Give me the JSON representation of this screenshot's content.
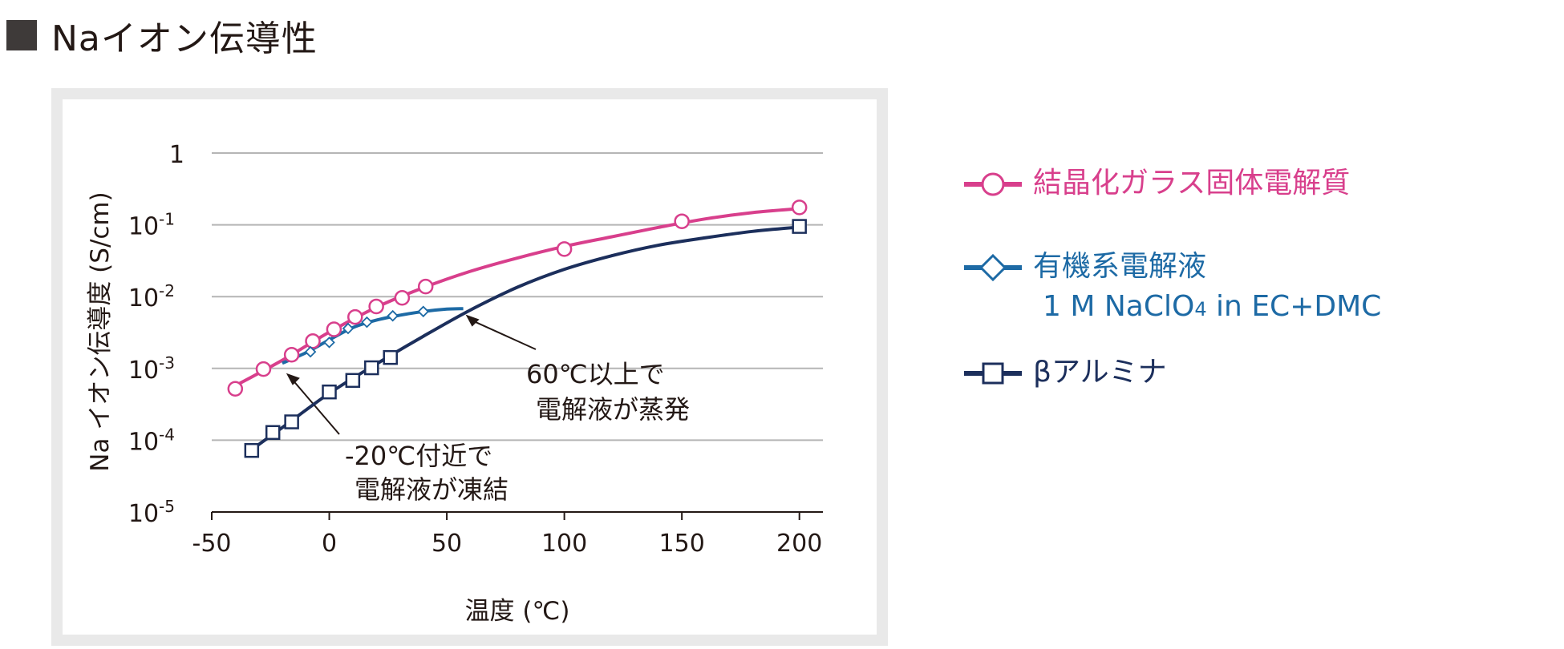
{
  "heading": {
    "text": "Naイオン伝導性"
  },
  "colors": {
    "crystallized": "#d83f8c",
    "organic": "#1d6aa5",
    "alumina": "#1c2f5c",
    "grid": "#b5b5b5",
    "axis": "#231815",
    "panel": "#e9e9e9"
  },
  "chart_data": {
    "type": "scatter",
    "xlabel": "温度 (℃)",
    "ylabel": "Na イオン伝導度 (S/cm)",
    "xlim": [
      -50,
      210
    ],
    "ylim_log10": [
      -5,
      0
    ],
    "y_scale": "log",
    "grid": "horizontal",
    "x_ticks": [
      -50,
      0,
      50,
      100,
      150,
      200
    ],
    "x_tick_labels": [
      "-50",
      "0",
      "50",
      "100",
      "150",
      "200"
    ],
    "y_ticks": [
      {
        "value": 1,
        "base": "1",
        "exp": ""
      },
      {
        "value": 0.1,
        "base": "10",
        "exp": "-1"
      },
      {
        "value": 0.01,
        "base": "10",
        "exp": "-2"
      },
      {
        "value": 0.001,
        "base": "10",
        "exp": "-3"
      },
      {
        "value": 0.0001,
        "base": "10",
        "exp": "-4"
      },
      {
        "value": 1e-05,
        "base": "10",
        "exp": "-5"
      }
    ],
    "series": [
      {
        "name": "結晶化ガラス固体電解質",
        "color_key": "crystallized",
        "marker": "circle",
        "points": [
          [
            -40,
            0.00052
          ],
          [
            -28,
            0.00098
          ],
          [
            -16,
            0.00155
          ],
          [
            -7,
            0.0024
          ],
          [
            2,
            0.0035
          ],
          [
            11,
            0.0052
          ],
          [
            20,
            0.0073
          ],
          [
            31,
            0.0096
          ],
          [
            41,
            0.0138
          ],
          [
            100,
            0.046
          ],
          [
            150,
            0.112
          ],
          [
            200,
            0.175
          ]
        ],
        "curve": [
          [
            -41,
            0.00055
          ],
          [
            -20,
            0.0013
          ],
          [
            0,
            0.0032
          ],
          [
            20,
            0.0071
          ],
          [
            40,
            0.0133
          ],
          [
            60,
            0.0225
          ],
          [
            80,
            0.0345
          ],
          [
            100,
            0.05
          ],
          [
            120,
            0.068
          ],
          [
            140,
            0.092
          ],
          [
            160,
            0.121
          ],
          [
            180,
            0.148
          ],
          [
            200,
            0.168
          ]
        ]
      },
      {
        "name": "有機系電解液",
        "name_line2": "1 M NaClO4 in EC+DMC",
        "color_key": "organic",
        "marker": "diamond",
        "points": [
          [
            -8,
            0.0017
          ],
          [
            0,
            0.0023
          ],
          [
            8,
            0.0036
          ],
          [
            16,
            0.0044
          ],
          [
            27,
            0.0054
          ],
          [
            40,
            0.0062
          ]
        ],
        "curve": [
          [
            -20,
            0.00118
          ],
          [
            -10,
            0.00165
          ],
          [
            0,
            0.0025
          ],
          [
            10,
            0.0037
          ],
          [
            20,
            0.0047
          ],
          [
            30,
            0.0055
          ],
          [
            40,
            0.0062
          ],
          [
            50,
            0.0067
          ],
          [
            57,
            0.0068
          ]
        ]
      },
      {
        "name": "βアルミナ",
        "color_key": "alumina",
        "marker": "square",
        "points": [
          [
            -33,
            7.2e-05
          ],
          [
            -24,
            0.000128
          ],
          [
            -16,
            0.00018
          ],
          [
            0,
            0.00047
          ],
          [
            10,
            0.00068
          ],
          [
            18,
            0.00102
          ],
          [
            26,
            0.00142
          ],
          [
            200,
            0.095
          ]
        ],
        "curve": [
          [
            -34,
            7e-05
          ],
          [
            -20,
            0.00015
          ],
          [
            0,
            0.00045
          ],
          [
            20,
            0.00115
          ],
          [
            40,
            0.0028
          ],
          [
            60,
            0.0065
          ],
          [
            80,
            0.0135
          ],
          [
            100,
            0.024
          ],
          [
            120,
            0.037
          ],
          [
            140,
            0.052
          ],
          [
            160,
            0.066
          ],
          [
            180,
            0.081
          ],
          [
            200,
            0.093
          ]
        ]
      }
    ],
    "annotations": [
      {
        "line1": "60℃以上で",
        "line2": "電解液が蒸発",
        "x": 57,
        "y": 0.0064
      },
      {
        "line1": "-20℃付近で",
        "line2": "電解液が凍結",
        "x": -19,
        "y": 0.00095
      }
    ]
  },
  "legend": {
    "items": [
      {
        "label": "結晶化ガラス固体電解質",
        "color_key": "crystallized",
        "marker": "circle"
      },
      {
        "label": "有機系電解液",
        "label2_main": "1 M NaClO",
        "label2_sub": "4",
        "label2_rest": " in EC+DMC",
        "color_key": "organic",
        "marker": "diamond"
      },
      {
        "label": "βアルミナ",
        "color_key": "alumina",
        "marker": "square"
      }
    ]
  }
}
